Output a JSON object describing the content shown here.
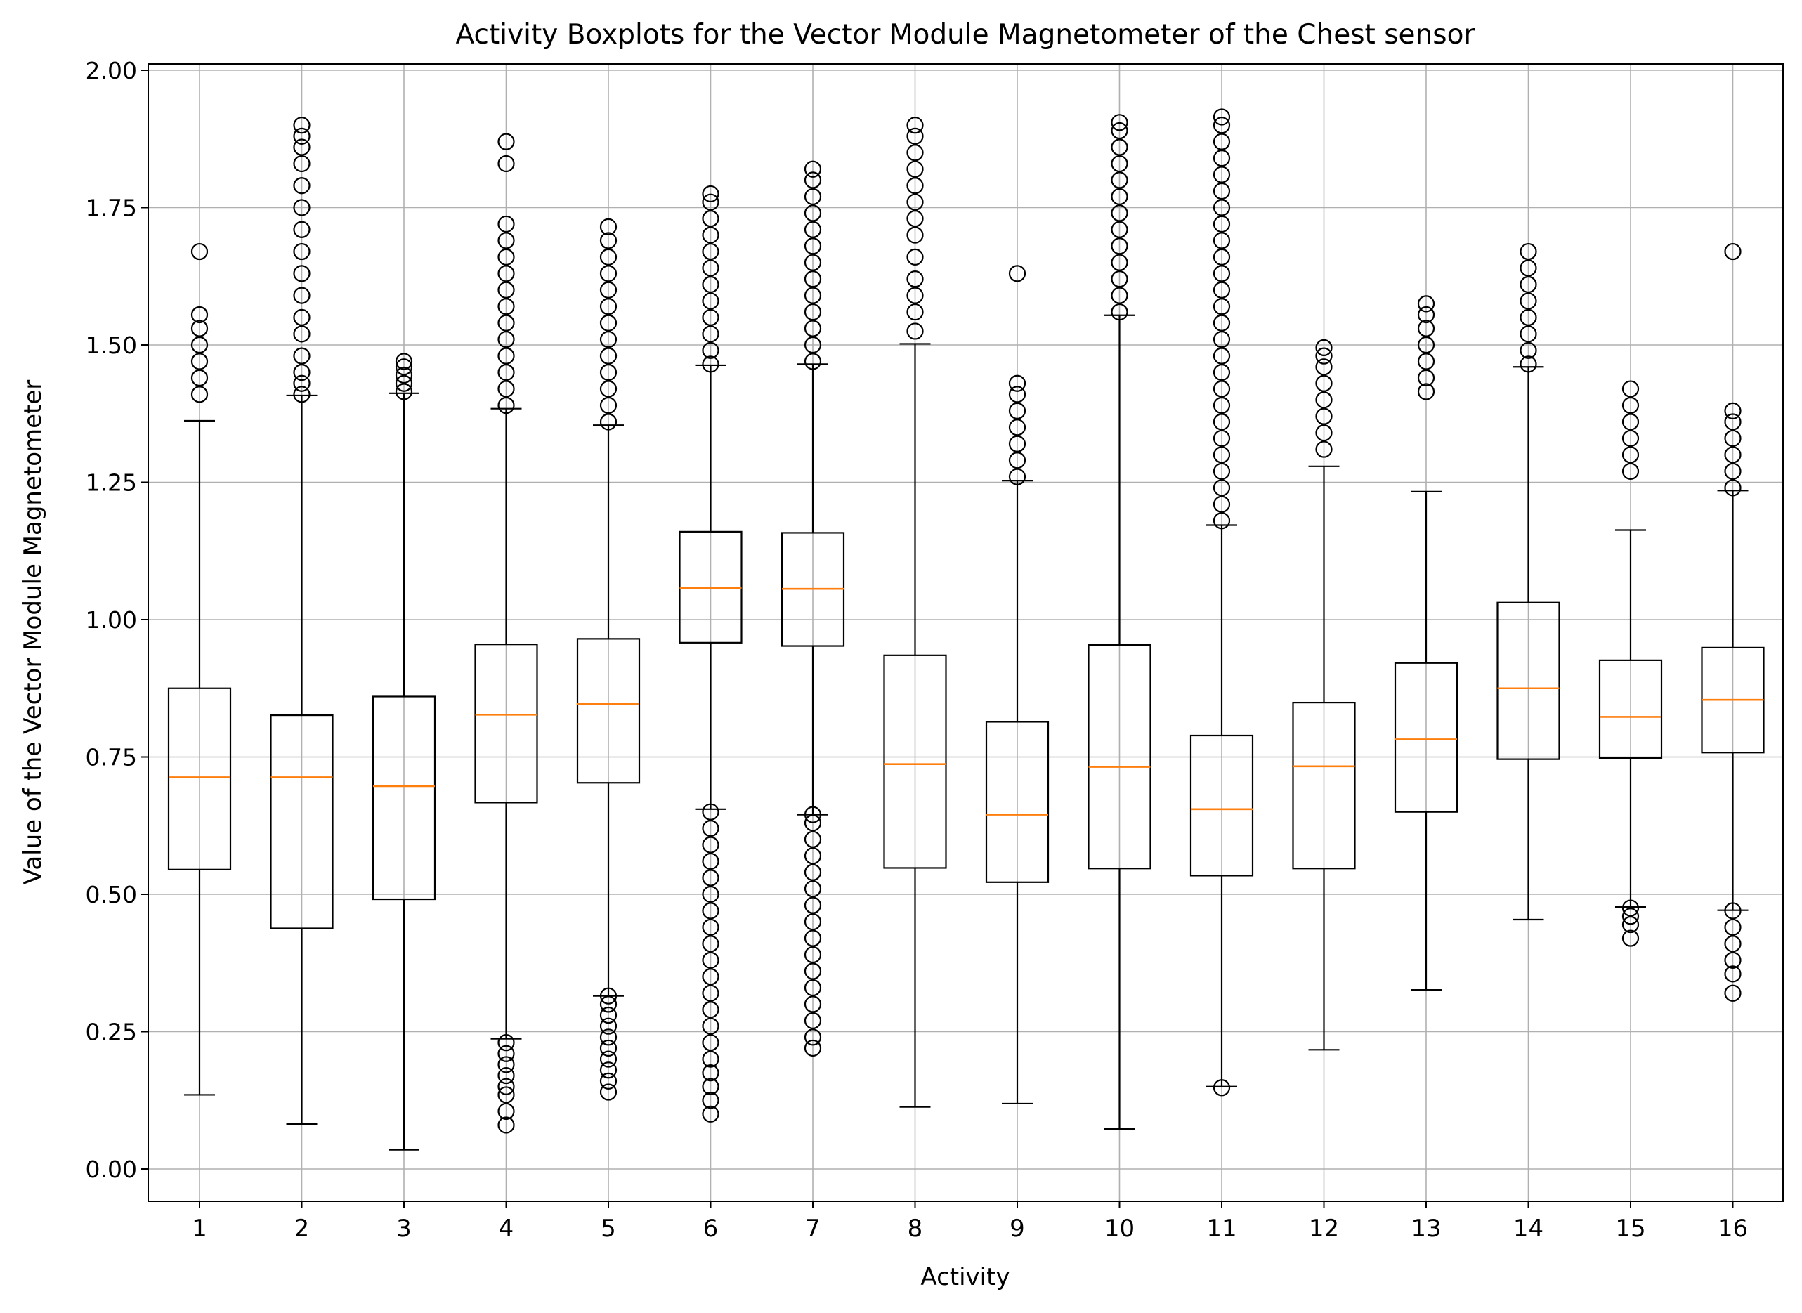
{
  "chart_data": {
    "type": "boxplot",
    "title": "Activity Boxplots for the Vector Module Magnetometer of the Chest sensor",
    "xlabel": "Activity",
    "ylabel": "Value of the Vector Module Magnetometer",
    "ylim": [
      -0.06,
      2.01
    ],
    "yticks": [
      "0.00",
      "0.25",
      "0.50",
      "0.75",
      "1.00",
      "1.25",
      "1.50",
      "1.75",
      "2.00"
    ],
    "grid": true,
    "categories": [
      "1",
      "2",
      "3",
      "4",
      "5",
      "6",
      "7",
      "8",
      "9",
      "10",
      "11",
      "12",
      "13",
      "14",
      "15",
      "16"
    ],
    "boxes": [
      {
        "label": "1",
        "whislo": 0.135,
        "q1": 0.545,
        "med": 0.713,
        "q3": 0.875,
        "whishi": 1.362,
        "fliers_low": [],
        "fliers_high": [
          1.41,
          1.44,
          1.47,
          1.5,
          1.53,
          1.555,
          1.67
        ]
      },
      {
        "label": "2",
        "whislo": 0.082,
        "q1": 0.438,
        "med": 0.713,
        "q3": 0.826,
        "whishi": 1.408,
        "fliers_low": [],
        "fliers_high": [
          1.41,
          1.43,
          1.45,
          1.48,
          1.52,
          1.55,
          1.59,
          1.63,
          1.67,
          1.71,
          1.75,
          1.79,
          1.83,
          1.86,
          1.88,
          1.9
        ]
      },
      {
        "label": "3",
        "whislo": 0.035,
        "q1": 0.491,
        "med": 0.697,
        "q3": 0.86,
        "whishi": 1.412,
        "fliers_low": [],
        "fliers_high": [
          1.415,
          1.43,
          1.445,
          1.46,
          1.47
        ]
      },
      {
        "label": "4",
        "whislo": 0.237,
        "q1": 0.667,
        "med": 0.827,
        "q3": 0.955,
        "whishi": 1.384,
        "fliers_low": [
          0.08,
          0.105,
          0.135,
          0.15,
          0.17,
          0.19,
          0.21,
          0.23
        ],
        "fliers_high": [
          1.39,
          1.42,
          1.45,
          1.48,
          1.51,
          1.54,
          1.57,
          1.6,
          1.63,
          1.66,
          1.69,
          1.72,
          1.83,
          1.87
        ]
      },
      {
        "label": "5",
        "whislo": 0.315,
        "q1": 0.703,
        "med": 0.847,
        "q3": 0.965,
        "whishi": 1.354,
        "fliers_low": [
          0.14,
          0.16,
          0.18,
          0.2,
          0.22,
          0.24,
          0.26,
          0.28,
          0.3,
          0.315
        ],
        "fliers_high": [
          1.36,
          1.39,
          1.42,
          1.45,
          1.48,
          1.51,
          1.54,
          1.57,
          1.6,
          1.63,
          1.66,
          1.69,
          1.715
        ]
      },
      {
        "label": "6",
        "whislo": 0.655,
        "q1": 0.958,
        "med": 1.058,
        "q3": 1.16,
        "whishi": 1.463,
        "fliers_low": [
          0.1,
          0.125,
          0.15,
          0.175,
          0.2,
          0.23,
          0.26,
          0.29,
          0.32,
          0.35,
          0.38,
          0.41,
          0.44,
          0.47,
          0.5,
          0.53,
          0.56,
          0.59,
          0.62,
          0.65
        ],
        "fliers_high": [
          1.465,
          1.49,
          1.52,
          1.55,
          1.58,
          1.61,
          1.64,
          1.67,
          1.7,
          1.73,
          1.76,
          1.775
        ]
      },
      {
        "label": "7",
        "whislo": 0.645,
        "q1": 0.952,
        "med": 1.056,
        "q3": 1.158,
        "whishi": 1.465,
        "fliers_low": [
          0.22,
          0.24,
          0.27,
          0.3,
          0.33,
          0.36,
          0.39,
          0.42,
          0.45,
          0.48,
          0.51,
          0.54,
          0.57,
          0.6,
          0.63,
          0.645
        ],
        "fliers_high": [
          1.47,
          1.5,
          1.53,
          1.56,
          1.59,
          1.62,
          1.65,
          1.68,
          1.71,
          1.74,
          1.77,
          1.8,
          1.82
        ]
      },
      {
        "label": "8",
        "whislo": 0.113,
        "q1": 0.548,
        "med": 0.737,
        "q3": 0.935,
        "whishi": 1.502,
        "fliers_low": [],
        "fliers_high": [
          1.525,
          1.56,
          1.59,
          1.62,
          1.66,
          1.7,
          1.73,
          1.76,
          1.79,
          1.82,
          1.85,
          1.88,
          1.9
        ]
      },
      {
        "label": "9",
        "whislo": 0.119,
        "q1": 0.522,
        "med": 0.645,
        "q3": 0.814,
        "whishi": 1.253,
        "fliers_low": [],
        "fliers_high": [
          1.26,
          1.29,
          1.32,
          1.35,
          1.38,
          1.41,
          1.43,
          1.63
        ]
      },
      {
        "label": "10",
        "whislo": 0.073,
        "q1": 0.547,
        "med": 0.732,
        "q3": 0.954,
        "whishi": 1.554,
        "fliers_low": [],
        "fliers_high": [
          1.56,
          1.59,
          1.62,
          1.65,
          1.68,
          1.71,
          1.74,
          1.77,
          1.8,
          1.83,
          1.86,
          1.89,
          1.905
        ]
      },
      {
        "label": "11",
        "whislo": 0.15,
        "q1": 0.534,
        "med": 0.655,
        "q3": 0.789,
        "whishi": 1.172,
        "fliers_low": [
          0.148
        ],
        "fliers_high": [
          1.18,
          1.21,
          1.24,
          1.27,
          1.3,
          1.33,
          1.36,
          1.39,
          1.42,
          1.45,
          1.48,
          1.51,
          1.54,
          1.57,
          1.6,
          1.63,
          1.66,
          1.69,
          1.72,
          1.75,
          1.78,
          1.81,
          1.84,
          1.87,
          1.9,
          1.915
        ]
      },
      {
        "label": "12",
        "whislo": 0.217,
        "q1": 0.547,
        "med": 0.733,
        "q3": 0.849,
        "whishi": 1.279,
        "fliers_low": [],
        "fliers_high": [
          1.31,
          1.34,
          1.37,
          1.4,
          1.43,
          1.46,
          1.48,
          1.495
        ]
      },
      {
        "label": "13",
        "whislo": 0.326,
        "q1": 0.65,
        "med": 0.782,
        "q3": 0.921,
        "whishi": 1.233,
        "fliers_low": [],
        "fliers_high": [
          1.415,
          1.44,
          1.47,
          1.5,
          1.53,
          1.555,
          1.575
        ]
      },
      {
        "label": "14",
        "whislo": 0.454,
        "q1": 0.746,
        "med": 0.875,
        "q3": 1.031,
        "whishi": 1.46,
        "fliers_low": [],
        "fliers_high": [
          1.465,
          1.49,
          1.52,
          1.55,
          1.58,
          1.61,
          1.64,
          1.67
        ]
      },
      {
        "label": "15",
        "whislo": 0.477,
        "q1": 0.748,
        "med": 0.823,
        "q3": 0.926,
        "whishi": 1.163,
        "fliers_low": [
          0.42,
          0.445,
          0.46,
          0.475
        ],
        "fliers_high": [
          1.27,
          1.3,
          1.33,
          1.36,
          1.39,
          1.42
        ]
      },
      {
        "label": "16",
        "whislo": 0.471,
        "q1": 0.758,
        "med": 0.854,
        "q3": 0.949,
        "whishi": 1.235,
        "fliers_low": [
          0.32,
          0.355,
          0.38,
          0.41,
          0.44,
          0.47
        ],
        "fliers_high": [
          1.24,
          1.27,
          1.3,
          1.33,
          1.36,
          1.38,
          1.67
        ]
      }
    ],
    "colors": {
      "median": "#ff7f0e",
      "box": "#000000",
      "grid": "#b0b0b0"
    }
  }
}
